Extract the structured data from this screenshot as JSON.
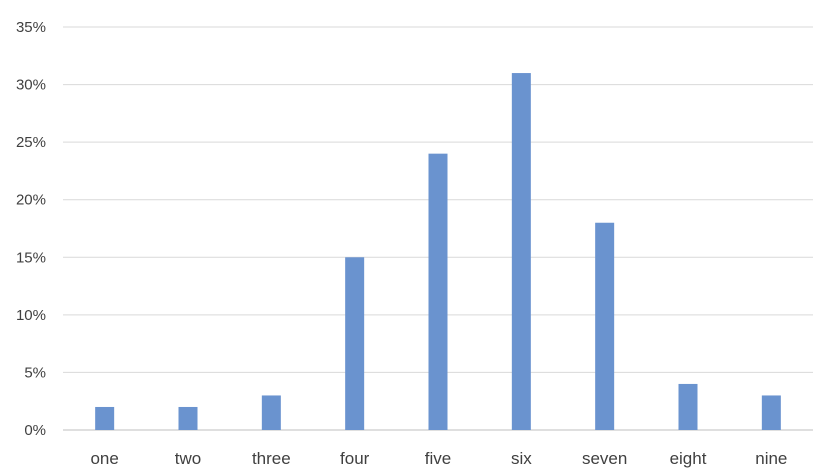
{
  "chart_data": {
    "type": "bar",
    "title": "",
    "xlabel": "",
    "ylabel": "",
    "categories": [
      "one",
      "two",
      "three",
      "four",
      "five",
      "six",
      "seven",
      "eight",
      "nine"
    ],
    "values": [
      2,
      2,
      3,
      15,
      24,
      31,
      18,
      4,
      3
    ],
    "value_format": "percent",
    "ylim": [
      0,
      35
    ],
    "yticks": [
      "0%",
      "5%",
      "10%",
      "15%",
      "20%",
      "25%",
      "30%",
      "35%"
    ],
    "grid": true,
    "legend": "none",
    "colors": {
      "bar": "#6a93cf",
      "grid": "#d9d9d9",
      "text": "#404040"
    }
  }
}
